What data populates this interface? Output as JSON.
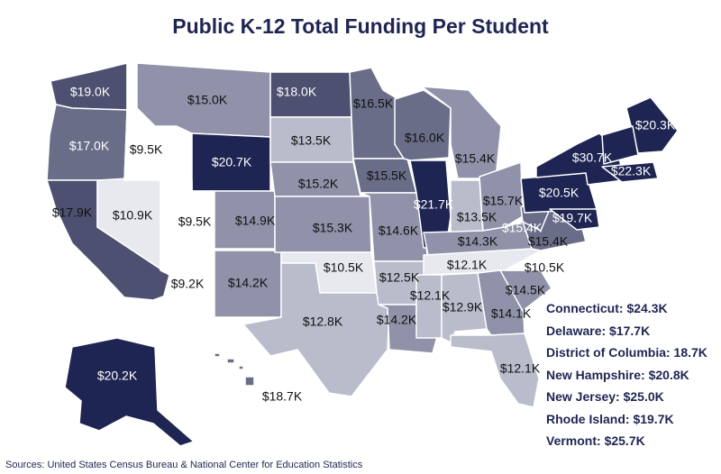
{
  "title": "Public K-12 Total Funding Per Student",
  "source": "Sources: United States Census Bureau & National Center for Education Statistics",
  "colors": {
    "darkest": "#1f2552",
    "dark": "#4d5070",
    "medium": "#6a6d88",
    "medium_light": "#8f92a8",
    "light": "#b8bccb",
    "lightest": "#e8e9ee",
    "title": "#1f2552"
  },
  "states": [
    {
      "code": "WA",
      "value": "$19.0K"
    },
    {
      "code": "OR",
      "value": "$17.0K"
    },
    {
      "code": "CA",
      "value": "$17.9K"
    },
    {
      "code": "NV",
      "value": "$10.9K"
    },
    {
      "code": "ID",
      "value": "$9.5K"
    },
    {
      "code": "MT",
      "value": "$15.0K"
    },
    {
      "code": "WY",
      "value": "$20.7K"
    },
    {
      "code": "UT",
      "value": "$9.5K"
    },
    {
      "code": "AZ",
      "value": "$9.2K"
    },
    {
      "code": "CO",
      "value": "$14.9K"
    },
    {
      "code": "NM",
      "value": "$14.2K"
    },
    {
      "code": "ND",
      "value": "$18.0K"
    },
    {
      "code": "SD",
      "value": "$13.5K"
    },
    {
      "code": "NE",
      "value": "$15.2K"
    },
    {
      "code": "KS",
      "value": "$15.3K"
    },
    {
      "code": "OK",
      "value": "$10.5K"
    },
    {
      "code": "TX",
      "value": "$12.8K"
    },
    {
      "code": "MN",
      "value": "$16.5K"
    },
    {
      "code": "IA",
      "value": "$15.5K"
    },
    {
      "code": "MO",
      "value": "$14.6K"
    },
    {
      "code": "AR",
      "value": "$12.5K"
    },
    {
      "code": "LA",
      "value": "$14.2K"
    },
    {
      "code": "WI",
      "value": "$16.0K"
    },
    {
      "code": "IL",
      "value": "$21.7K"
    },
    {
      "code": "MI",
      "value": "$15.4K"
    },
    {
      "code": "IN",
      "value": "$13.5K"
    },
    {
      "code": "OH",
      "value": "$15.7K"
    },
    {
      "code": "KY",
      "value": "$14.3K"
    },
    {
      "code": "TN",
      "value": "$12.1K"
    },
    {
      "code": "MS",
      "value": "$12.1K"
    },
    {
      "code": "AL",
      "value": "$12.9K"
    },
    {
      "code": "GA",
      "value": "$14.1K"
    },
    {
      "code": "FL",
      "value": "$12.1K"
    },
    {
      "code": "SC",
      "value": "$14.5K"
    },
    {
      "code": "NC",
      "value": "$10.5K"
    },
    {
      "code": "VA",
      "value": "$15.4K"
    },
    {
      "code": "WV",
      "value": "$15.4K"
    },
    {
      "code": "PA",
      "value": "$20.5K"
    },
    {
      "code": "NY",
      "value": "$30.7K"
    },
    {
      "code": "MD",
      "value": "$19.7K"
    },
    {
      "code": "MA",
      "value": "$22.3K"
    },
    {
      "code": "ME",
      "value": "$20.3K"
    },
    {
      "code": "AK",
      "value": "$20.2K"
    },
    {
      "code": "HI",
      "value": "$18.7K"
    }
  ],
  "callouts": [
    "Connecticut: $24.3K",
    "Delaware: $17.7K",
    "District of Columbia: 18.7K",
    "New Hampshire: $20.8K",
    "New Jersey: $25.0K",
    "Rhode Island: $19.7K",
    "Vermont: $25.7K"
  ]
}
